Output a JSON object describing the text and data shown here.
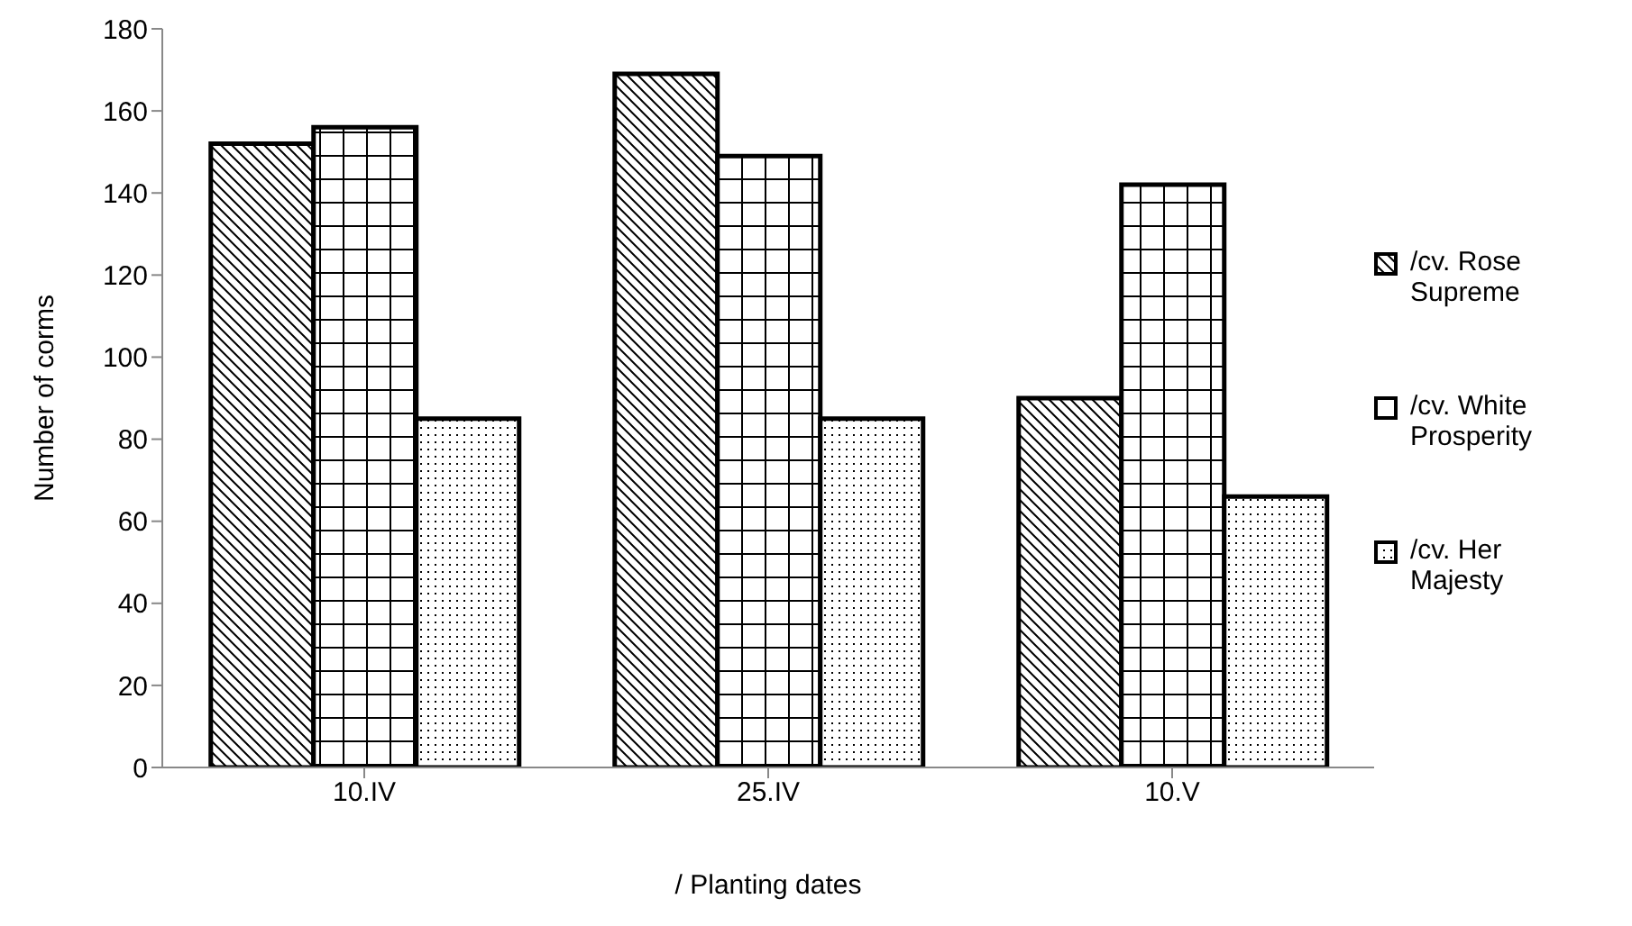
{
  "chart_data": {
    "type": "bar",
    "xlabel": "/ Planting dates",
    "ylabel": "Number of corms",
    "categories": [
      "10.IV",
      "25.IV",
      "10.V"
    ],
    "series": [
      {
        "name": "/cv. Rose Supreme",
        "color": "#000000",
        "values": [
          152,
          169,
          90
        ]
      },
      {
        "name": "/cv. White Prosperity",
        "color": "#000000",
        "values": [
          156,
          149,
          142
        ]
      },
      {
        "name": "/cv. Her Majesty",
        "color": "#000000",
        "values": [
          85,
          85,
          66
        ]
      }
    ],
    "ylim": [
      0,
      180
    ],
    "yticks": [
      0,
      20,
      40,
      60,
      80,
      100,
      120,
      140,
      160,
      180
    ],
    "grid": false,
    "legend": "right"
  }
}
